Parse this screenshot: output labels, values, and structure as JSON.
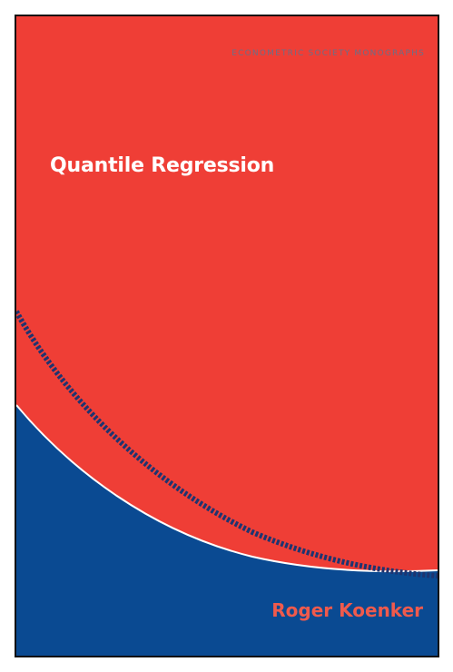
{
  "cover": {
    "series": "ECONOMETRIC SOCIETY MONOGRAPHS",
    "title": "Quantile Regression",
    "author": "Roger Koenker"
  },
  "colors": {
    "red": "#ef3e36",
    "blue": "#0a4a92",
    "white": "#ffffff",
    "series_text": "#6d6e86",
    "author_text": "#f05a4c"
  }
}
